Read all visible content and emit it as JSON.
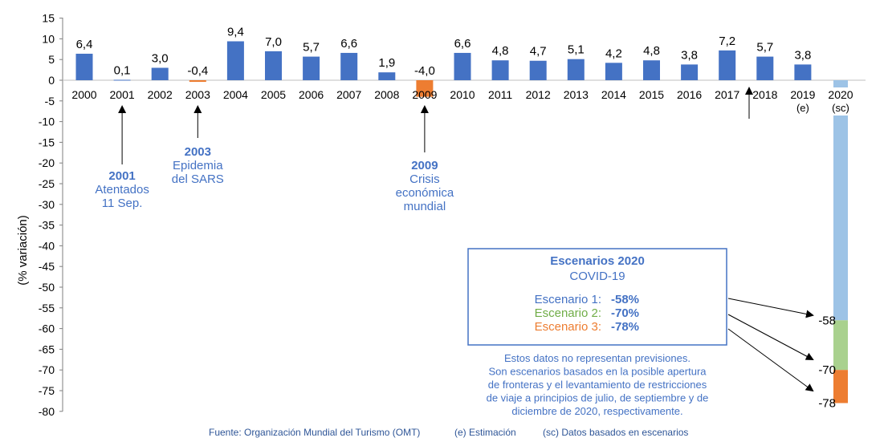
{
  "chart_data": {
    "type": "bar",
    "ylabel": "(% variación)",
    "ylim": [
      -80,
      15
    ],
    "yticks": [
      15,
      10,
      5,
      0,
      -5,
      -10,
      -15,
      -20,
      -25,
      -30,
      -35,
      -40,
      -45,
      -50,
      -55,
      -60,
      -65,
      -70,
      -75,
      -80
    ],
    "categories": [
      "2000",
      "2001",
      "2002",
      "2003",
      "2004",
      "2005",
      "2006",
      "2007",
      "2008",
      "2009",
      "2010",
      "2011",
      "2012",
      "2013",
      "2014",
      "2015",
      "2016",
      "2017",
      "2018",
      "2019",
      "2020"
    ],
    "category_sublabels": {
      "19": "(e)",
      "20": "(sc)"
    },
    "values": [
      6.4,
      0.1,
      3.0,
      -0.4,
      9.4,
      7.0,
      5.7,
      6.6,
      1.9,
      -4.0,
      6.6,
      4.8,
      4.7,
      5.1,
      4.2,
      4.8,
      3.8,
      7.2,
      5.7,
      3.8,
      null
    ],
    "value_labels": [
      "6,4",
      "0,1",
      "3,0",
      "-0,4",
      "9,4",
      "7,0",
      "5,7",
      "6,6",
      "1,9",
      "-4,0",
      "6,6",
      "4,8",
      "4,7",
      "5,1",
      "4,2",
      "4,8",
      "3,8",
      "7,2",
      "5,7",
      "3,8",
      ""
    ],
    "crisis_years": [
      3,
      9
    ],
    "scenarios_2020": [
      {
        "name": "Escenario 1",
        "value": -58,
        "label": "-58",
        "color": "#9dc3e6"
      },
      {
        "name": "Escenario 2",
        "value": -70,
        "label": "-70",
        "color": "#a9d18e"
      },
      {
        "name": "Escenario 3",
        "value": -78,
        "label": "-78",
        "color": "#ed7d31"
      }
    ],
    "colors": {
      "normal": "#4472c4",
      "crisis": "#ed7d31",
      "text_blue": "#4472c4",
      "green": "#70ad47",
      "orange": "#ed7d31"
    }
  },
  "annotations": [
    {
      "year": "2001",
      "lines": [
        "Atentados",
        "11 Sep."
      ]
    },
    {
      "year": "2003",
      "lines": [
        "Epidemia",
        "del SARS"
      ]
    },
    {
      "year": "2009",
      "lines": [
        "Crisis",
        "económica",
        "mundial"
      ]
    }
  ],
  "scenario_box": {
    "title": "Escenarios 2020",
    "subtitle": "COVID-19",
    "rows": [
      {
        "label": "Escenario 1:",
        "value": "-58%"
      },
      {
        "label": "Escenario 2:",
        "value": "-70%"
      },
      {
        "label": "Escenario 3:",
        "value": "-78%"
      }
    ]
  },
  "note_lines": [
    "Estos datos no representan previsiones.",
    "Son escenarios basados en la posible apertura",
    "de fronteras y el levantamiento de restricciones",
    "de viaje a principios de julio, de septiembre y de",
    "diciembre de 2020, respectivamente."
  ],
  "footer": {
    "source": "Fuente: Organización Mundial del Turismo (OMT)",
    "estimate": "(e) Estimación",
    "scenarios": "(sc) Datos basados en escenarios"
  }
}
